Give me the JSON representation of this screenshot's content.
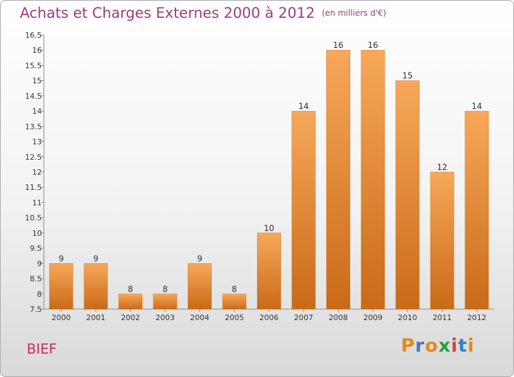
{
  "page": {
    "title": "Achats et Charges Externes 2000 à 2012",
    "unit": "(en milliers d'€)",
    "brand_label": "BIEF",
    "logo": {
      "letters": [
        "P",
        "r",
        "o",
        "x",
        "i",
        "t",
        "i"
      ],
      "colors": [
        "#e08a1e",
        "#3a7fc6",
        "#e08a1e",
        "#2a9d4a",
        "#d6403e",
        "#3a7fc6",
        "#e08a1e"
      ]
    }
  },
  "chart_data": {
    "type": "bar",
    "title": "Achats et Charges Externes 2000 à 2012",
    "subtitle": "(en milliers d'€)",
    "categories": [
      "2000",
      "2001",
      "2002",
      "2003",
      "2004",
      "2005",
      "2006",
      "2007",
      "2008",
      "2009",
      "2010",
      "2011",
      "2012"
    ],
    "values": [
      9,
      9,
      8,
      8,
      9,
      8,
      10,
      14,
      16,
      16,
      15,
      12,
      14
    ],
    "ylim": [
      7.5,
      16.5
    ],
    "yticks": [
      "7.5",
      "8",
      "8.5",
      "9",
      "9.5",
      "10",
      "10.5",
      "11",
      "11.5",
      "12",
      "12.5",
      "13",
      "13.5",
      "14",
      "14.5",
      "15",
      "15.5",
      "16",
      "16.5"
    ],
    "grid": false,
    "bar_color_top": "#f7a85a",
    "bar_color_bottom": "#c96a18"
  }
}
